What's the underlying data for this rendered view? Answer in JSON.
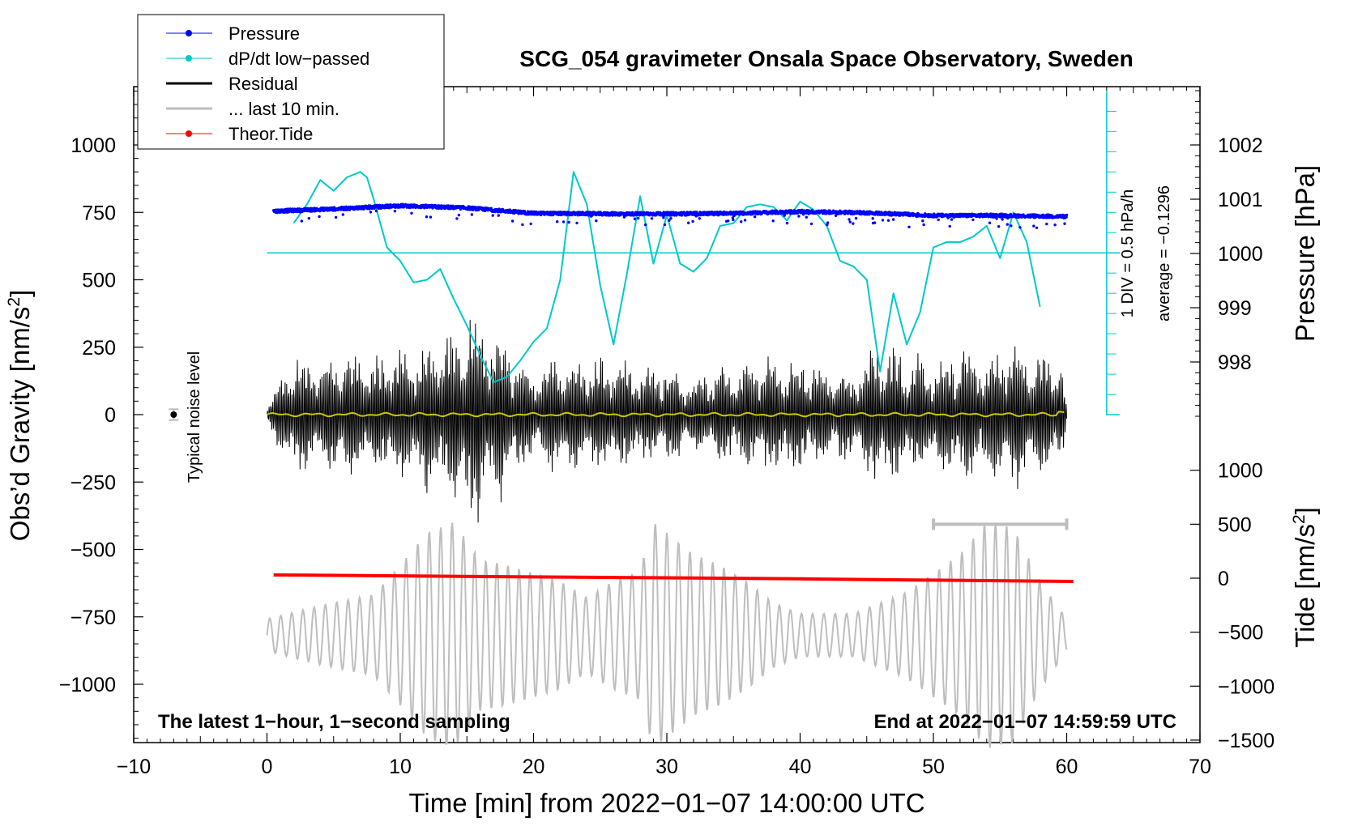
{
  "chart_data": {
    "type": "line",
    "title": "SCG_054 gravimeter Onsala Space Observatory, Sweden",
    "xlabel": "Time [min] from 2022−01−07 14:00:00 UTC",
    "ylabel_left": "Obs’d Gravity [nm/s",
    "ylabel_left_sup": "2",
    "ylabel_left_end": "]",
    "ylabel_right_pressure": "Pressure [hPa]",
    "ylabel_right_tide": "Tide [nm/s",
    "ylabel_right_tide_sup": "2",
    "ylabel_right_tide_end": "]",
    "xlim": [
      -10,
      70
    ],
    "ylim": [
      -1200,
      1200
    ],
    "x_ticks": [
      "−10",
      "0",
      "10",
      "20",
      "30",
      "40",
      "50",
      "60",
      "70"
    ],
    "x_tick_values": [
      -10,
      0,
      10,
      20,
      30,
      40,
      50,
      60,
      70
    ],
    "y_ticks": [
      "1000",
      "750",
      "500",
      "250",
      "0",
      "−250",
      "−500",
      "−750",
      "−1000"
    ],
    "y_tick_values": [
      1000,
      750,
      500,
      250,
      0,
      -250,
      -500,
      -750,
      -1000
    ],
    "pressure_ticks": [
      "1002",
      "1001",
      "1000",
      "999",
      "998"
    ],
    "pressure_tick_values": [
      1002,
      1001,
      1000,
      999,
      998
    ],
    "tide_ticks": [
      "1000",
      "500",
      "0",
      "−500",
      "−1000",
      "−1500"
    ],
    "tide_tick_values": [
      1000,
      500,
      0,
      -500,
      -1000,
      -1500
    ],
    "bottom_left_note": "The latest 1−hour, 1−second sampling",
    "bottom_right_note": "End at 2022−01−07 14:59:59 UTC",
    "noise_label": "Typical noise level",
    "dpdt_scale_label": "1 DIV = 0.5 hPa/h",
    "dpdt_average_label": "average = −0.1296",
    "legend": [
      {
        "name": "Pressure",
        "color": "#0000ff",
        "marker": true
      },
      {
        "name": "dP/dt low−passed",
        "color": "#00c8c8",
        "marker": true
      },
      {
        "name": "Residual",
        "color": "#000000",
        "marker": false
      },
      {
        "name": "... last 10 min.",
        "color": "#bebebe",
        "marker": false
      },
      {
        "name": "Theor.Tide",
        "color": "#ff0000",
        "marker": true
      }
    ],
    "series": [
      {
        "name": "Pressure",
        "color": "#0000ff",
        "unit": "hPa",
        "x": [
          0.5,
          5,
          10,
          15,
          20,
          25,
          30,
          35,
          40,
          45,
          50,
          55,
          60
        ],
        "values": [
          1000.78,
          1000.82,
          1000.88,
          1000.84,
          1000.74,
          1000.73,
          1000.73,
          1000.74,
          1000.77,
          1000.75,
          1000.7,
          1000.7,
          1000.68
        ]
      },
      {
        "name": "dP/dt low−passed",
        "color": "#00c8c8",
        "unit": "gravity-axis equivalent",
        "x": [
          2,
          3,
          4,
          5,
          6,
          7,
          7.5,
          8,
          9,
          10,
          11,
          12,
          13,
          14,
          15,
          16,
          17,
          18,
          19,
          20,
          21,
          22,
          23,
          24,
          25,
          26,
          27,
          28,
          29,
          30,
          31,
          32,
          33,
          34,
          35,
          36,
          37,
          38,
          39,
          40,
          41,
          42,
          43,
          44,
          45,
          46,
          47,
          48,
          49,
          50,
          51,
          52,
          53,
          54,
          55,
          56,
          57,
          58
        ],
        "values": [
          710,
          780,
          870,
          830,
          880,
          900,
          880,
          800,
          620,
          570,
          490,
          500,
          540,
          430,
          330,
          220,
          120,
          140,
          200,
          270,
          320,
          500,
          900,
          780,
          480,
          260,
          520,
          810,
          560,
          740,
          560,
          530,
          580,
          700,
          710,
          770,
          780,
          770,
          720,
          790,
          760,
          700,
          570,
          550,
          500,
          160,
          450,
          260,
          380,
          620,
          640,
          640,
          660,
          700,
          580,
          750,
          640,
          400
        ]
      },
      {
        "name": "Residual",
        "color": "#000000",
        "x": [
          0,
          2,
          4,
          6,
          8,
          10,
          12,
          14,
          15.3,
          16,
          18,
          20,
          22,
          24,
          26,
          28,
          30,
          32,
          34,
          36,
          38,
          40,
          42,
          44,
          46,
          48,
          50,
          52,
          54,
          56,
          58,
          59.5,
          60
        ],
        "envelope": [
          40,
          260,
          220,
          280,
          230,
          270,
          300,
          330,
          500,
          400,
          310,
          180,
          260,
          210,
          250,
          200,
          210,
          160,
          200,
          220,
          240,
          230,
          210,
          170,
          310,
          250,
          230,
          270,
          250,
          300,
          240,
          280,
          40
        ]
      },
      {
        "name": "... last 10 min.",
        "color": "#bebebe",
        "unit": "gravity-axis equivalent",
        "x_start": 0,
        "x_end": 60,
        "center": -818,
        "envelope_x": [
          0,
          4,
          8,
          10,
          12,
          14,
          16,
          18,
          20,
          22,
          24,
          26,
          28,
          29,
          30,
          32,
          34,
          36,
          38,
          40,
          42,
          44,
          46,
          48,
          50,
          52,
          54,
          56,
          58,
          60
        ],
        "envelope": [
          60,
          110,
          150,
          260,
          380,
          420,
          280,
          260,
          230,
          200,
          140,
          200,
          240,
          420,
          380,
          300,
          260,
          200,
          120,
          80,
          80,
          80,
          120,
          160,
          230,
          300,
          420,
          400,
          200,
          60
        ]
      },
      {
        "name": "Theor.Tide",
        "color": "#ff0000",
        "unit": "nm/s²",
        "x": [
          0.5,
          10,
          20,
          30,
          40,
          50,
          60.5
        ],
        "values": [
          30,
          22,
          12,
          4,
          -6,
          -18,
          -30
        ]
      }
    ],
    "noise_bar": {
      "x": -7,
      "value": 0,
      "error": 20
    },
    "last10_bar": {
      "x_start": 50,
      "x_end": 60,
      "tide_level": 500
    },
    "dpdt_zero_level": 600,
    "dpdt_axis_x": 63,
    "dpdt_axis_range": [
      0,
      1200
    ],
    "dpdt_div": 75
  }
}
